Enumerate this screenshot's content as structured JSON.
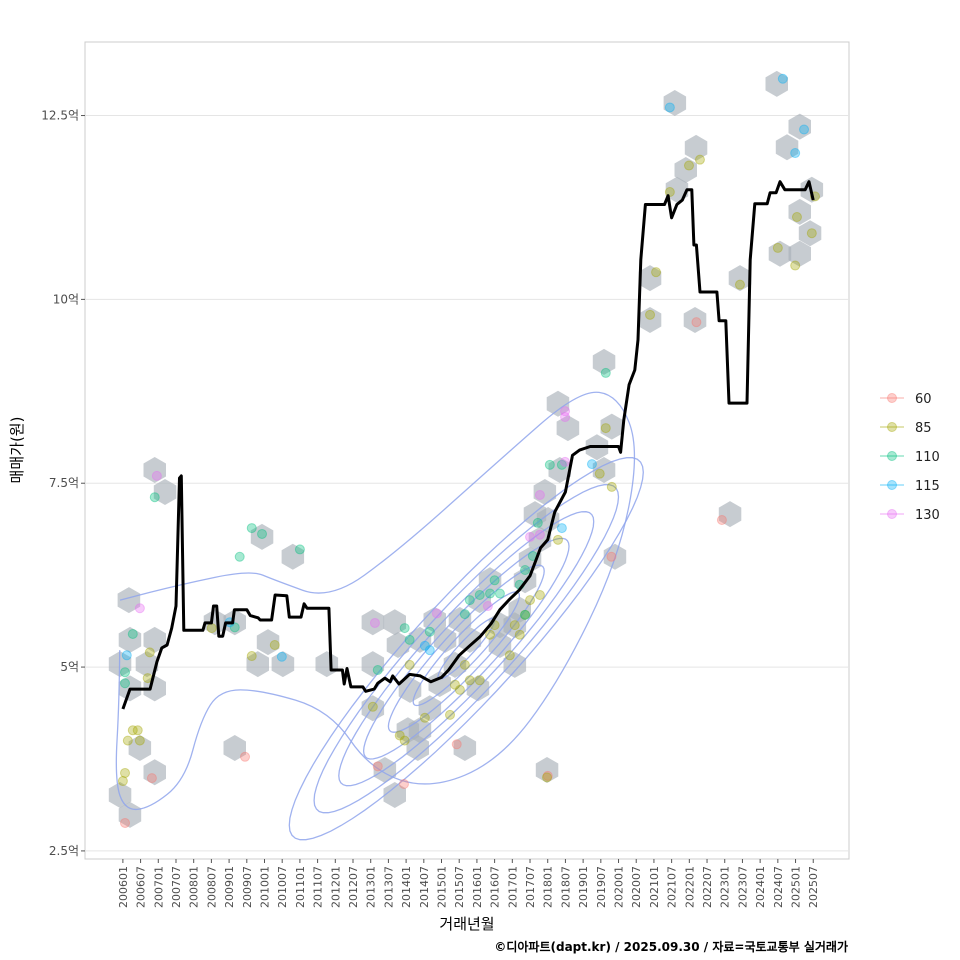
{
  "chart_data": {
    "type": "line",
    "title": "",
    "xlabel": "거래년월",
    "ylabel": "매매가(원)",
    "caption": "©디아파트(dapt.kr) / 2025.09.30 / 자료=국토교통부 실거래가",
    "xlim": [
      2004.93,
      2026.51
    ],
    "ylim": [
      2.39,
      13.5
    ],
    "grid": true,
    "legend_position": "right",
    "y_ticks": [
      {
        "value": 2.5,
        "label": "2.5억"
      },
      {
        "value": 5,
        "label": "5억"
      },
      {
        "value": 7.5,
        "label": "7.5억"
      },
      {
        "value": 10,
        "label": "10억"
      },
      {
        "value": 12.5,
        "label": "12.5억"
      }
    ],
    "x_tick_start": 2006.0,
    "x_tick_step": 0.5,
    "x_tick_labels": [
      "200601",
      "200607",
      "200701",
      "200707",
      "200801",
      "200807",
      "200901",
      "200907",
      "201001",
      "201007",
      "201101",
      "201107",
      "201201",
      "201207",
      "201301",
      "201307",
      "201401",
      "201407",
      "201501",
      "201507",
      "201601",
      "201607",
      "201701",
      "201707",
      "201801",
      "201807",
      "201901",
      "201907",
      "202001",
      "202007",
      "202101",
      "202107",
      "202201",
      "202207",
      "202301",
      "202307",
      "202401",
      "202407",
      "202501",
      "202507"
    ],
    "legend": [
      {
        "label": "60",
        "color": "#F8766D"
      },
      {
        "label": "85",
        "color": "#A3A500"
      },
      {
        "label": "110",
        "color": "#00BF7D"
      },
      {
        "label": "115",
        "color": "#00B0F6"
      },
      {
        "label": "130",
        "color": "#E76BF3"
      }
    ],
    "median_line": [
      [
        2006.0,
        4.43
      ],
      [
        2006.2,
        4.7
      ],
      [
        2006.77,
        4.7
      ],
      [
        2006.96,
        5.07
      ],
      [
        2007.1,
        5.26
      ],
      [
        2007.25,
        5.3
      ],
      [
        2007.38,
        5.53
      ],
      [
        2007.5,
        5.83
      ],
      [
        2007.6,
        7.57
      ],
      [
        2007.65,
        7.6
      ],
      [
        2007.72,
        5.5
      ],
      [
        2008.26,
        5.5
      ],
      [
        2008.32,
        5.6
      ],
      [
        2008.5,
        5.6
      ],
      [
        2008.56,
        5.83
      ],
      [
        2008.65,
        5.83
      ],
      [
        2008.71,
        5.42
      ],
      [
        2008.82,
        5.42
      ],
      [
        2008.9,
        5.6
      ],
      [
        2009.1,
        5.6
      ],
      [
        2009.15,
        5.78
      ],
      [
        2009.5,
        5.78
      ],
      [
        2009.6,
        5.7
      ],
      [
        2009.82,
        5.67
      ],
      [
        2009.88,
        5.64
      ],
      [
        2010.2,
        5.64
      ],
      [
        2010.3,
        5.98
      ],
      [
        2010.63,
        5.97
      ],
      [
        2010.7,
        5.68
      ],
      [
        2011.03,
        5.68
      ],
      [
        2011.12,
        5.86
      ],
      [
        2011.2,
        5.8
      ],
      [
        2011.82,
        5.8
      ],
      [
        2011.88,
        4.96
      ],
      [
        2012.2,
        4.96
      ],
      [
        2012.25,
        4.77
      ],
      [
        2012.33,
        4.98
      ],
      [
        2012.44,
        4.73
      ],
      [
        2012.78,
        4.73
      ],
      [
        2012.86,
        4.67
      ],
      [
        2013.1,
        4.7
      ],
      [
        2013.2,
        4.78
      ],
      [
        2013.4,
        4.85
      ],
      [
        2013.55,
        4.8
      ],
      [
        2013.62,
        4.88
      ],
      [
        2013.8,
        4.77
      ],
      [
        2014.1,
        4.9
      ],
      [
        2014.4,
        4.88
      ],
      [
        2014.7,
        4.8
      ],
      [
        2015.0,
        4.86
      ],
      [
        2015.2,
        4.96
      ],
      [
        2015.5,
        5.16
      ],
      [
        2015.8,
        5.29
      ],
      [
        2016.1,
        5.42
      ],
      [
        2016.4,
        5.59
      ],
      [
        2016.65,
        5.78
      ],
      [
        2016.9,
        5.91
      ],
      [
        2017.2,
        6.05
      ],
      [
        2017.5,
        6.24
      ],
      [
        2017.8,
        6.62
      ],
      [
        2018.0,
        6.73
      ],
      [
        2018.2,
        7.11
      ],
      [
        2018.5,
        7.38
      ],
      [
        2018.7,
        7.88
      ],
      [
        2018.9,
        7.95
      ],
      [
        2019.2,
        8.0
      ],
      [
        2020.0,
        8.0
      ],
      [
        2020.06,
        7.92
      ],
      [
        2020.15,
        8.36
      ],
      [
        2020.3,
        8.84
      ],
      [
        2020.46,
        9.04
      ],
      [
        2020.55,
        9.45
      ],
      [
        2020.63,
        10.54
      ],
      [
        2020.76,
        11.29
      ],
      [
        2021.3,
        11.29
      ],
      [
        2021.4,
        11.41
      ],
      [
        2021.5,
        11.11
      ],
      [
        2021.65,
        11.29
      ],
      [
        2021.8,
        11.35
      ],
      [
        2021.93,
        11.49
      ],
      [
        2022.07,
        11.49
      ],
      [
        2022.13,
        10.74
      ],
      [
        2022.2,
        10.74
      ],
      [
        2022.3,
        10.1
      ],
      [
        2022.78,
        10.1
      ],
      [
        2022.84,
        9.71
      ],
      [
        2023.03,
        9.71
      ],
      [
        2023.12,
        8.59
      ],
      [
        2023.63,
        8.59
      ],
      [
        2023.72,
        10.54
      ],
      [
        2023.85,
        11.3
      ],
      [
        2024.2,
        11.3
      ],
      [
        2024.28,
        11.45
      ],
      [
        2024.45,
        11.45
      ],
      [
        2024.56,
        11.6
      ],
      [
        2024.7,
        11.49
      ],
      [
        2025.27,
        11.49
      ],
      [
        2025.38,
        11.6
      ],
      [
        2025.5,
        11.35
      ]
    ],
    "hexbins": [
      [
        2006.17,
        5.91
      ],
      [
        2006.2,
        5.37
      ],
      [
        2006.9,
        5.37
      ],
      [
        2005.92,
        5.04
      ],
      [
        2006.68,
        5.04
      ],
      [
        2006.2,
        4.71
      ],
      [
        2006.9,
        4.71
      ],
      [
        2006.48,
        3.9
      ],
      [
        2006.9,
        3.57
      ],
      [
        2005.92,
        3.26
      ],
      [
        2006.2,
        2.99
      ],
      [
        2006.9,
        7.68
      ],
      [
        2007.19,
        7.38
      ],
      [
        2008.6,
        5.61
      ],
      [
        2009.16,
        5.61
      ],
      [
        2009.93,
        6.77
      ],
      [
        2010.8,
        6.5
      ],
      [
        2010.1,
        5.34
      ],
      [
        2009.81,
        5.04
      ],
      [
        2010.52,
        5.04
      ],
      [
        2009.16,
        3.9
      ],
      [
        2011.76,
        5.04
      ],
      [
        2013.06,
        5.61
      ],
      [
        2013.06,
        5.04
      ],
      [
        2013.06,
        4.44
      ],
      [
        2013.68,
        5.61
      ],
      [
        2013.4,
        3.6
      ],
      [
        2013.68,
        3.26
      ],
      [
        2014.05,
        4.14
      ],
      [
        2014.39,
        4.14
      ],
      [
        2014.33,
        3.9
      ],
      [
        2014.67,
        4.44
      ],
      [
        2014.95,
        4.77
      ],
      [
        2015.1,
        5.37
      ],
      [
        2015.52,
        5.64
      ],
      [
        2016.08,
        5.91
      ],
      [
        2015.8,
        5.37
      ],
      [
        2015.38,
        5.03
      ],
      [
        2016.03,
        4.71
      ],
      [
        2016.65,
        5.3
      ],
      [
        2017.07,
        5.03
      ],
      [
        2017.21,
        5.78
      ],
      [
        2014.81,
        5.64
      ],
      [
        2014.39,
        5.37
      ],
      [
        2013.77,
        5.3
      ],
      [
        2014.11,
        4.69
      ],
      [
        2015.66,
        3.9
      ],
      [
        2017.98,
        3.6
      ],
      [
        2016.37,
        6.18
      ],
      [
        2016.65,
        5.57
      ],
      [
        2017.07,
        5.57
      ],
      [
        2017.36,
        6.18
      ],
      [
        2017.5,
        6.46
      ],
      [
        2017.78,
        6.73
      ],
      [
        2018.01,
        7.0
      ],
      [
        2018.29,
        8.58
      ],
      [
        2018.57,
        8.25
      ],
      [
        2017.92,
        7.38
      ],
      [
        2017.64,
        7.08
      ],
      [
        2018.34,
        7.68
      ],
      [
        2019.59,
        9.15
      ],
      [
        2019.81,
        8.27
      ],
      [
        2019.39,
        7.99
      ],
      [
        2019.59,
        7.68
      ],
      [
        2019.9,
        6.5
      ],
      [
        2020.89,
        10.29
      ],
      [
        2020.89,
        9.72
      ],
      [
        2021.59,
        12.67
      ],
      [
        2021.65,
        11.49
      ],
      [
        2021.9,
        11.76
      ],
      [
        2022.19,
        12.06
      ],
      [
        2022.16,
        9.72
      ],
      [
        2023.15,
        7.08
      ],
      [
        2023.43,
        10.29
      ],
      [
        2024.47,
        12.93
      ],
      [
        2024.76,
        12.07
      ],
      [
        2025.12,
        12.35
      ],
      [
        2025.12,
        11.19
      ],
      [
        2025.46,
        11.49
      ],
      [
        2025.41,
        10.9
      ],
      [
        2024.56,
        10.62
      ],
      [
        2025.12,
        10.62
      ]
    ],
    "points": [
      {
        "group": "60",
        "pts": [
          [
            2006.06,
            2.88
          ],
          [
            2006.82,
            3.49
          ],
          [
            2009.45,
            3.78
          ],
          [
            2013.2,
            3.65
          ],
          [
            2013.94,
            3.41
          ],
          [
            2015.43,
            3.95
          ],
          [
            2018.0,
            3.52
          ],
          [
            2019.8,
            6.5
          ],
          [
            2022.2,
            9.69
          ],
          [
            2022.92,
            7.0
          ]
        ]
      },
      {
        "group": "85",
        "pts": [
          [
            2006.06,
            3.56
          ],
          [
            2006.0,
            3.45
          ],
          [
            2006.14,
            4.0
          ],
          [
            2006.28,
            4.14
          ],
          [
            2006.48,
            4.0
          ],
          [
            2006.42,
            4.14
          ],
          [
            2006.7,
            4.85
          ],
          [
            2006.76,
            5.2
          ],
          [
            2008.51,
            5.53
          ],
          [
            2009.64,
            5.15
          ],
          [
            2010.29,
            5.3
          ],
          [
            2013.06,
            4.46
          ],
          [
            2013.82,
            4.07
          ],
          [
            2013.96,
            4.0
          ],
          [
            2014.1,
            5.03
          ],
          [
            2014.53,
            4.31
          ],
          [
            2015.24,
            4.35
          ],
          [
            2015.38,
            4.76
          ],
          [
            2015.52,
            4.69
          ],
          [
            2015.8,
            4.82
          ],
          [
            2015.66,
            5.03
          ],
          [
            2016.08,
            4.82
          ],
          [
            2016.37,
            5.44
          ],
          [
            2016.5,
            5.57
          ],
          [
            2016.93,
            5.16
          ],
          [
            2017.07,
            5.57
          ],
          [
            2017.21,
            5.44
          ],
          [
            2017.36,
            5.71
          ],
          [
            2017.5,
            5.91
          ],
          [
            2017.78,
            5.98
          ],
          [
            2017.98,
            3.5
          ],
          [
            2018.29,
            6.73
          ],
          [
            2019.47,
            7.63
          ],
          [
            2019.64,
            8.25
          ],
          [
            2019.81,
            7.45
          ],
          [
            2020.89,
            9.79
          ],
          [
            2021.06,
            10.37
          ],
          [
            2021.45,
            11.46
          ],
          [
            2021.99,
            11.82
          ],
          [
            2022.3,
            11.9
          ],
          [
            2023.43,
            10.2
          ],
          [
            2024.5,
            10.7
          ],
          [
            2025.04,
            11.12
          ],
          [
            2024.99,
            10.46
          ],
          [
            2025.46,
            10.9
          ],
          [
            2025.55,
            11.4
          ]
        ]
      },
      {
        "group": "110",
        "pts": [
          [
            2006.9,
            7.31
          ],
          [
            2006.28,
            5.45
          ],
          [
            2006.06,
            4.93
          ],
          [
            2006.06,
            4.78
          ],
          [
            2009.64,
            6.89
          ],
          [
            2009.93,
            6.81
          ],
          [
            2009.3,
            6.5
          ],
          [
            2011.0,
            6.6
          ],
          [
            2009.16,
            5.54
          ],
          [
            2013.2,
            4.96
          ],
          [
            2013.96,
            5.53
          ],
          [
            2014.1,
            5.37
          ],
          [
            2014.67,
            5.48
          ],
          [
            2015.66,
            5.72
          ],
          [
            2015.8,
            5.91
          ],
          [
            2016.08,
            5.98
          ],
          [
            2016.5,
            6.18
          ],
          [
            2016.37,
            6.0
          ],
          [
            2016.65,
            6.0
          ],
          [
            2017.21,
            6.12
          ],
          [
            2017.36,
            6.32
          ],
          [
            2017.58,
            6.51
          ],
          [
            2017.72,
            6.96
          ],
          [
            2018.06,
            7.75
          ],
          [
            2018.4,
            7.75
          ],
          [
            2019.64,
            9.0
          ],
          [
            2017.36,
            5.71
          ]
        ]
      },
      {
        "group": "115",
        "pts": [
          [
            2006.11,
            5.16
          ],
          [
            2009.02,
            5.61
          ],
          [
            2010.49,
            5.14
          ],
          [
            2014.53,
            5.29
          ],
          [
            2014.67,
            5.23
          ],
          [
            2018.4,
            6.89
          ],
          [
            2019.25,
            7.76
          ],
          [
            2021.45,
            12.61
          ],
          [
            2024.64,
            13.0
          ],
          [
            2024.99,
            11.99
          ],
          [
            2025.24,
            12.31
          ]
        ]
      },
      {
        "group": "130",
        "pts": [
          [
            2006.48,
            5.8
          ],
          [
            2006.96,
            7.6
          ],
          [
            2013.12,
            5.6
          ],
          [
            2014.87,
            5.73
          ],
          [
            2016.31,
            5.83
          ],
          [
            2017.5,
            6.77
          ],
          [
            2017.78,
            6.8
          ],
          [
            2018.49,
            8.48
          ],
          [
            2018.49,
            8.4
          ],
          [
            2017.78,
            7.34
          ],
          [
            2018.49,
            7.79
          ]
        ]
      }
    ],
    "density_center": [
      2015.7,
      5.25
    ],
    "density_slope": 0.48,
    "density_levels": [
      [
        0.8,
        0.15
      ],
      [
        1.5,
        0.28
      ],
      [
        2.2,
        0.42
      ],
      [
        2.9,
        0.56
      ],
      [
        3.6,
        0.7
      ],
      [
        4.3,
        0.85
      ],
      [
        5.0,
        1.0
      ]
    ],
    "density_outer": [
      [
        2005.92,
        5.91
      ],
      [
        2007.6,
        6.12
      ],
      [
        2009.6,
        6.32
      ],
      [
        2010.3,
        6.18
      ],
      [
        2011.85,
        5.91
      ],
      [
        2013.8,
        6.59
      ],
      [
        2016.65,
        7.82
      ],
      [
        2018.9,
        8.77
      ],
      [
        2020.0,
        8.7
      ],
      [
        2020.6,
        7.95
      ],
      [
        2020.0,
        6.46
      ],
      [
        2018.35,
        4.82
      ],
      [
        2016.65,
        3.73
      ],
      [
        2014.67,
        3.33
      ],
      [
        2013.0,
        3.6
      ],
      [
        2011.85,
        4.41
      ],
      [
        2009.9,
        4.69
      ],
      [
        2008.74,
        4.69
      ],
      [
        2008.2,
        4.28
      ],
      [
        2007.75,
        3.46
      ],
      [
        2006.76,
        3.08
      ],
      [
        2006.06,
        3.05
      ],
      [
        2005.77,
        3.46
      ],
      [
        2005.9,
        4.55
      ],
      [
        2005.92,
        5.91
      ]
    ],
    "colors": {
      "line": "#000000",
      "hex": "#A9B0B8",
      "contour": "#8FA4EC",
      "grid": "#E5E5E5",
      "panel_border": "#CCCCCC"
    }
  }
}
